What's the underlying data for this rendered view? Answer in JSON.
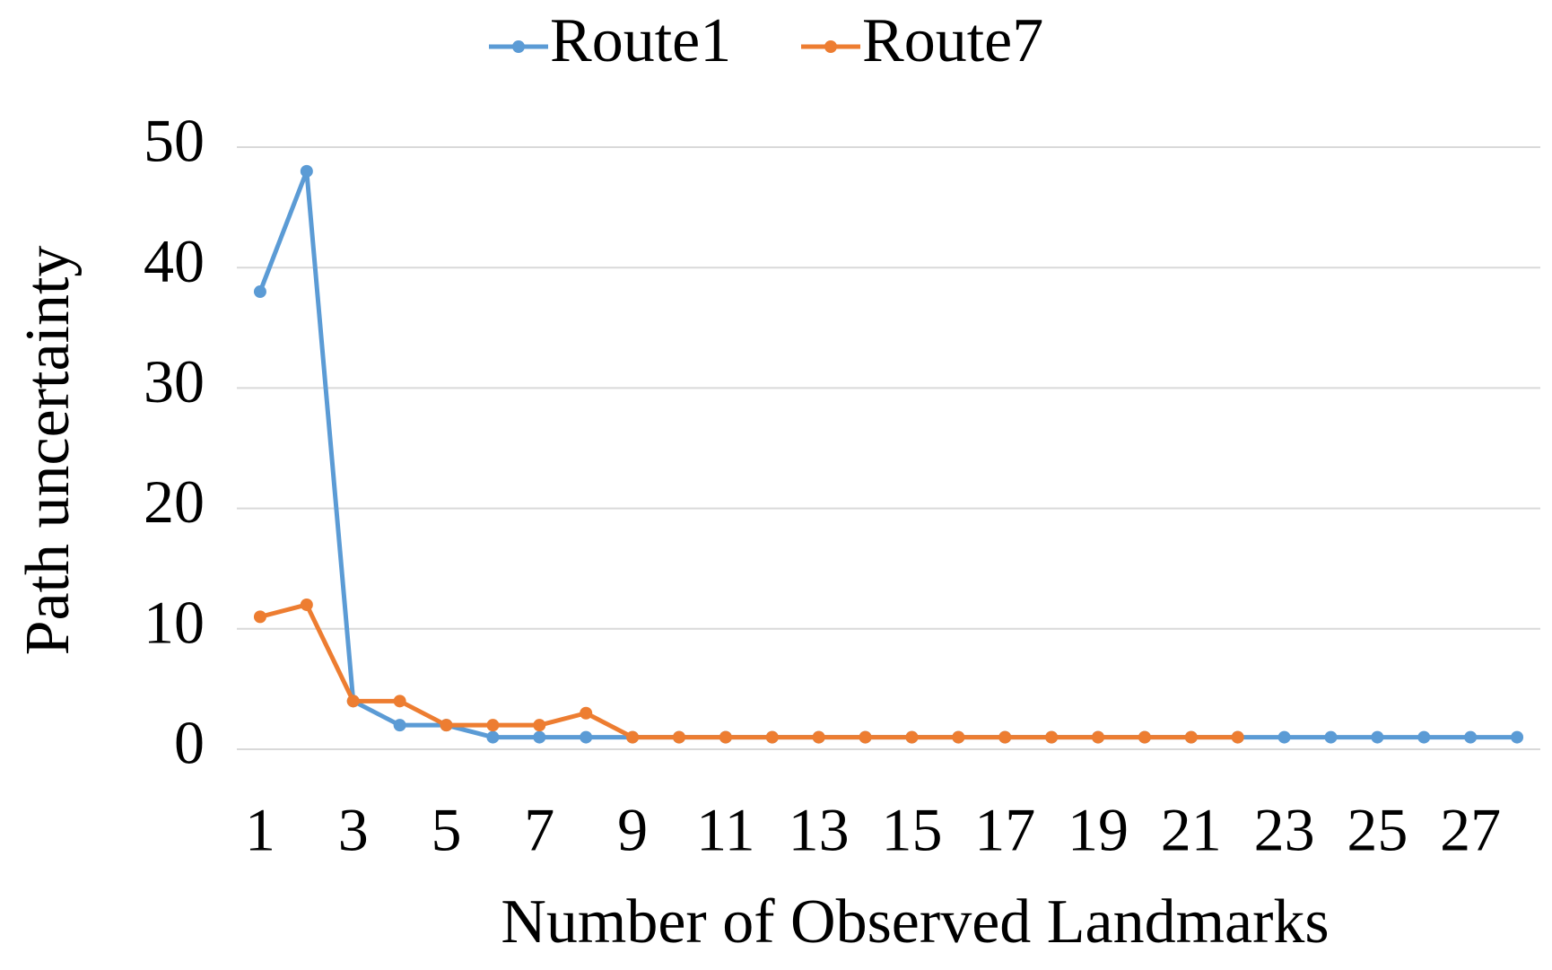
{
  "chart_data": {
    "type": "line",
    "x_label": "Number of Observed Landmarks",
    "y_label": "Path uncertainty",
    "categories": [
      1,
      null,
      3,
      null,
      5,
      null,
      7,
      null,
      9,
      null,
      11,
      null,
      13,
      null,
      15,
      null,
      17,
      null,
      19,
      null,
      21,
      null,
      23,
      null,
      25,
      null,
      27,
      null
    ],
    "series": [
      {
        "name": "Route1",
        "color": "#5b9bd5",
        "values": [
          38,
          48,
          4,
          2,
          2,
          1,
          1,
          1,
          1,
          1,
          1,
          1,
          1,
          1,
          1,
          1,
          1,
          1,
          1,
          1,
          1,
          1,
          1,
          1,
          1,
          1,
          1,
          1
        ]
      },
      {
        "name": "Route7",
        "color": "#ed7d31",
        "values": [
          11,
          12,
          4,
          4,
          2,
          2,
          2,
          3,
          1,
          1,
          1,
          1,
          1,
          1,
          1,
          1,
          1,
          1,
          1,
          1,
          1,
          1,
          null,
          null,
          null,
          null,
          null,
          null
        ]
      }
    ],
    "ylim": [
      0,
      50
    ],
    "yticks": [
      0,
      10,
      20,
      30,
      40,
      50
    ],
    "grid": true,
    "legend": "top"
  }
}
